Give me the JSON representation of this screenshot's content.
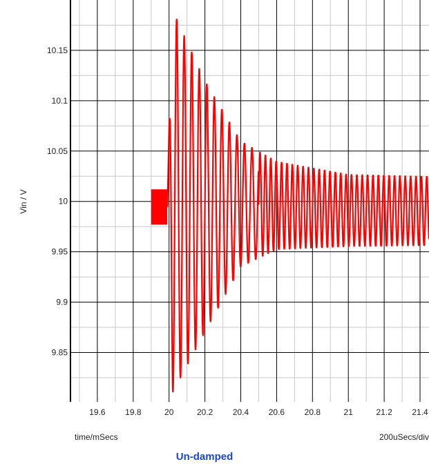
{
  "chart_data": {
    "type": "line",
    "title": "",
    "caption": "Un-damped",
    "xlabel": "time/mSecs",
    "ylabel": "Vin / V",
    "x_scale_note": "200uSecs/div",
    "xlim": [
      19.45,
      21.45
    ],
    "ylim": [
      9.801,
      10.2
    ],
    "xticks": [
      "19.6",
      "19.8",
      "20",
      "20.2",
      "20.4",
      "20.6",
      "20.8",
      "21",
      "21.2",
      "21.4"
    ],
    "yticks": [
      "9.85",
      "9.9",
      "9.95",
      "10",
      "10.05",
      "10.1",
      "10.15"
    ],
    "grid": true,
    "series": [
      {
        "color": "#ff0000",
        "description_points": [
          {
            "x": 19.9,
            "y_min": 9.977,
            "y_max": 10.012
          },
          {
            "x": 19.99,
            "y_min": 9.977,
            "y_max": 10.012
          },
          {
            "x": 20.02,
            "y_min": 9.81,
            "y_max": 10.19
          },
          {
            "x": 20.2,
            "y_min": 9.87,
            "y_max": 10.12
          },
          {
            "x": 20.4,
            "y_min": 9.935,
            "y_max": 10.06
          },
          {
            "x": 20.6,
            "y_min": 9.952,
            "y_max": 10.04
          },
          {
            "x": 21.0,
            "y_min": 9.955,
            "y_max": 10.027
          },
          {
            "x": 21.45,
            "y_min": 9.956,
            "y_max": 10.025
          }
        ]
      }
    ]
  }
}
